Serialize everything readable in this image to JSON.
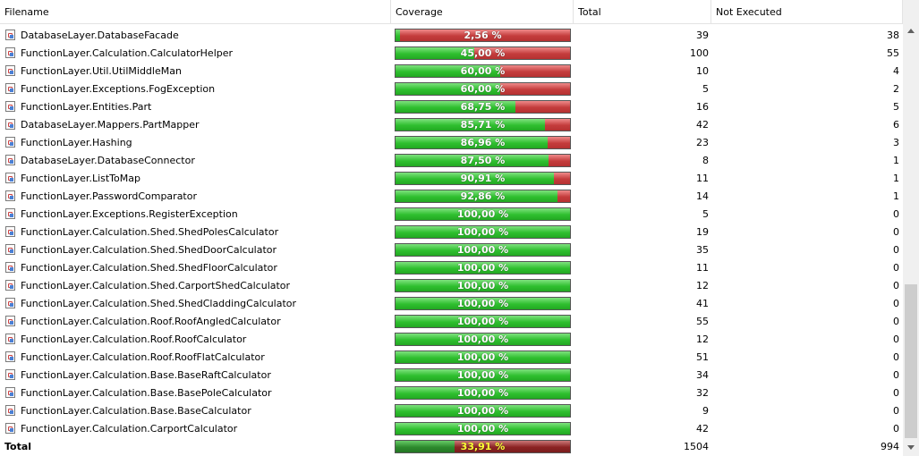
{
  "columns": {
    "filename": "Filename",
    "coverage": "Coverage",
    "total": "Total",
    "not_executed": "Not Executed"
  },
  "rows": [
    {
      "name": "DatabaseLayer.DatabaseFacade",
      "coverage": "2,56 %",
      "fraction": 0.0256,
      "total": "39",
      "not_executed": "38"
    },
    {
      "name": "FunctionLayer.Calculation.CalculatorHelper",
      "coverage": "45,00 %",
      "fraction": 0.45,
      "total": "100",
      "not_executed": "55"
    },
    {
      "name": "FunctionLayer.Util.UtilMiddleMan",
      "coverage": "60,00 %",
      "fraction": 0.6,
      "total": "10",
      "not_executed": "4"
    },
    {
      "name": "FunctionLayer.Exceptions.FogException",
      "coverage": "60,00 %",
      "fraction": 0.6,
      "total": "5",
      "not_executed": "2"
    },
    {
      "name": "FunctionLayer.Entities.Part",
      "coverage": "68,75 %",
      "fraction": 0.6875,
      "total": "16",
      "not_executed": "5"
    },
    {
      "name": "DatabaseLayer.Mappers.PartMapper",
      "coverage": "85,71 %",
      "fraction": 0.8571,
      "total": "42",
      "not_executed": "6"
    },
    {
      "name": "FunctionLayer.Hashing",
      "coverage": "86,96 %",
      "fraction": 0.8696,
      "total": "23",
      "not_executed": "3"
    },
    {
      "name": "DatabaseLayer.DatabaseConnector",
      "coverage": "87,50 %",
      "fraction": 0.875,
      "total": "8",
      "not_executed": "1"
    },
    {
      "name": "FunctionLayer.ListToMap",
      "coverage": "90,91 %",
      "fraction": 0.9091,
      "total": "11",
      "not_executed": "1"
    },
    {
      "name": "FunctionLayer.PasswordComparator",
      "coverage": "92,86 %",
      "fraction": 0.9286,
      "total": "14",
      "not_executed": "1"
    },
    {
      "name": "FunctionLayer.Exceptions.RegisterException",
      "coverage": "100,00 %",
      "fraction": 1,
      "total": "5",
      "not_executed": "0"
    },
    {
      "name": "FunctionLayer.Calculation.Shed.ShedPolesCalculator",
      "coverage": "100,00 %",
      "fraction": 1,
      "total": "19",
      "not_executed": "0"
    },
    {
      "name": "FunctionLayer.Calculation.Shed.ShedDoorCalculator",
      "coverage": "100,00 %",
      "fraction": 1,
      "total": "35",
      "not_executed": "0"
    },
    {
      "name": "FunctionLayer.Calculation.Shed.ShedFloorCalculator",
      "coverage": "100,00 %",
      "fraction": 1,
      "total": "11",
      "not_executed": "0"
    },
    {
      "name": "FunctionLayer.Calculation.Shed.CarportShedCalculator",
      "coverage": "100,00 %",
      "fraction": 1,
      "total": "12",
      "not_executed": "0"
    },
    {
      "name": "FunctionLayer.Calculation.Shed.ShedCladdingCalculator",
      "coverage": "100,00 %",
      "fraction": 1,
      "total": "41",
      "not_executed": "0"
    },
    {
      "name": "FunctionLayer.Calculation.Roof.RoofAngledCalculator",
      "coverage": "100,00 %",
      "fraction": 1,
      "total": "55",
      "not_executed": "0"
    },
    {
      "name": "FunctionLayer.Calculation.Roof.RoofCalculator",
      "coverage": "100,00 %",
      "fraction": 1,
      "total": "12",
      "not_executed": "0"
    },
    {
      "name": "FunctionLayer.Calculation.Roof.RoofFlatCalculator",
      "coverage": "100,00 %",
      "fraction": 1,
      "total": "51",
      "not_executed": "0"
    },
    {
      "name": "FunctionLayer.Calculation.Base.BaseRaftCalculator",
      "coverage": "100,00 %",
      "fraction": 1,
      "total": "34",
      "not_executed": "0"
    },
    {
      "name": "FunctionLayer.Calculation.Base.BasePoleCalculator",
      "coverage": "100,00 %",
      "fraction": 1,
      "total": "32",
      "not_executed": "0"
    },
    {
      "name": "FunctionLayer.Calculation.Base.BaseCalculator",
      "coverage": "100,00 %",
      "fraction": 1,
      "total": "9",
      "not_executed": "0"
    },
    {
      "name": "FunctionLayer.Calculation.CarportCalculator",
      "coverage": "100,00 %",
      "fraction": 1,
      "total": "42",
      "not_executed": "0"
    }
  ],
  "total": {
    "label": "Total",
    "coverage": "33,91 %",
    "fraction": 0.3391,
    "total": "1504",
    "not_executed": "994"
  },
  "icons": {
    "file": "class-file-icon",
    "scroll_up": "arrow-up-icon",
    "scroll_down": "arrow-down-icon"
  }
}
